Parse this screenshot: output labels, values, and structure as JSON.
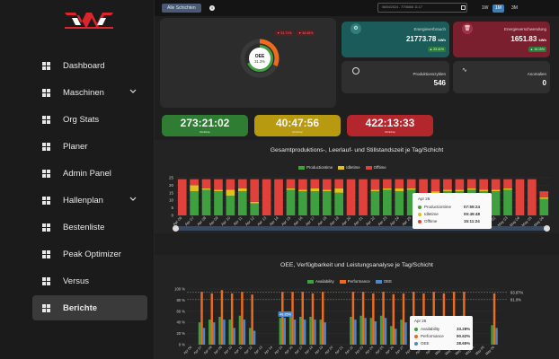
{
  "sidebar": {
    "items": [
      {
        "label": "Dashboard",
        "icon": "dashboard-icon"
      },
      {
        "label": "Maschinen",
        "icon": "machines-icon",
        "expandable": true
      },
      {
        "label": "Org Stats",
        "icon": "rocket-icon"
      },
      {
        "label": "Planer",
        "icon": "planner-icon"
      },
      {
        "label": "Admin Panel",
        "icon": "admin-icon"
      },
      {
        "label": "Hallenplan",
        "icon": "floorplan-icon",
        "expandable": true
      },
      {
        "label": "Bestenliste",
        "icon": "leaderboard-icon"
      },
      {
        "label": "Peak Optimizer",
        "icon": "optimizer-icon"
      },
      {
        "label": "Versus",
        "icon": "versus-icon"
      },
      {
        "label": "Berichte",
        "icon": "reports-icon",
        "active": true
      }
    ]
  },
  "topbar": {
    "filter_label": "Alle Schichten",
    "date_range": "06/04/2024 - 7/7/6666 11:17",
    "ranges": [
      "1W",
      "1M",
      "3M"
    ],
    "active_range": "1M"
  },
  "oee": {
    "label": "OEE",
    "value": "31.3%",
    "badge_left": "▼ 31.71%",
    "badge_right": "▼ 46.45%"
  },
  "tiles": {
    "energy": {
      "label": "Energieverbrauch",
      "value": "21773.78",
      "unit": "kWh",
      "badge": "▲ 33.41%"
    },
    "waste": {
      "label": "Energieverschwendung",
      "value": "1651.83",
      "unit": "kWh",
      "badge": "▲ 16.15%"
    },
    "cycles": {
      "label": "Produktionszyklen",
      "value": "546"
    },
    "anomalies": {
      "label": "Anomalien",
      "value": "0"
    }
  },
  "kpis": [
    {
      "value": "273:21:02",
      "sub": "Workshop",
      "color": "#2e7d32"
    },
    {
      "value": "40:47:56",
      "sub": "Workshop",
      "color": "#b89a10"
    },
    {
      "value": "422:13:33",
      "sub": "Workshop",
      "color": "#b3262b"
    }
  ],
  "chart1_title": "Gesamtproduktions-, Leerlauf- und Stillstandszeit je Tag/Schicht",
  "chart2_title": "OEE, Verfügbarkeit und Leistungsanalyse je Tag/Schicht",
  "tooltip1": {
    "title": "Apr 26",
    "rows": [
      {
        "label": "Productiontime",
        "value": "07:59:24",
        "color": "#3fa03f"
      },
      {
        "label": "Idletime",
        "value": "00:49:48",
        "color": "#e0c020"
      },
      {
        "label": "Offtime",
        "value": "15:11:24",
        "color": "#e0413a"
      }
    ]
  },
  "tooltip2": {
    "title": "Apr 26",
    "rows": [
      {
        "label": "Availability",
        "value": "33.28%",
        "color": "#3fa03f"
      },
      {
        "label": "Performance",
        "value": "90.62%",
        "color": "#ee6a1c"
      },
      {
        "label": "OEE",
        "value": "28.65%",
        "color": "#4a88c8"
      }
    ]
  },
  "chart_data": [
    {
      "type": "bar",
      "title": "Gesamtproduktions-, Leerlauf- und Stillstandszeit je Tag/Schicht",
      "stacked": true,
      "ylim": [
        0,
        25
      ],
      "yticks": [
        0,
        5,
        10,
        15,
        20,
        25
      ],
      "categories": [
        "Apr 06",
        "Apr 07",
        "Apr 08",
        "Apr 09",
        "Apr 10",
        "Apr 11",
        "Apr 12",
        "Apr 13",
        "Apr 14",
        "Apr 15",
        "Apr 16",
        "Apr 17",
        "Apr 18",
        "Apr 19",
        "Apr 20",
        "Apr 21",
        "Apr 22",
        "Apr 23",
        "Apr 24",
        "Apr 25",
        "Apr 26",
        "Apr 27",
        "Apr 28",
        "Apr 29",
        "Apr 30",
        "May 01",
        "May 02",
        "May 03",
        "May 04",
        "May 05",
        "May 06"
      ],
      "series": [
        {
          "name": "Productiontime",
          "color": "#3fa03f",
          "values": [
            0,
            16,
            17,
            16,
            13,
            16,
            8,
            0,
            0,
            17,
            16,
            16,
            16,
            15,
            0,
            0,
            16,
            17,
            16,
            17,
            8,
            14,
            16,
            16,
            17,
            16,
            16,
            17,
            0,
            0,
            11
          ]
        },
        {
          "name": "Idletime",
          "color": "#e0c020",
          "values": [
            0,
            4,
            1,
            1,
            4,
            2,
            1,
            0,
            0,
            1,
            1,
            2,
            1,
            3,
            0,
            0,
            1,
            1,
            2,
            1,
            0.83,
            2,
            1,
            1,
            1,
            1,
            1,
            1,
            0,
            0,
            1
          ]
        },
        {
          "name": "Offtime",
          "color": "#e0413a",
          "values": [
            24,
            4,
            6,
            7,
            7,
            6,
            15,
            24,
            24,
            6,
            7,
            6,
            7,
            6,
            24,
            24,
            7,
            6,
            6,
            6,
            15.2,
            8,
            7,
            7,
            6,
            7,
            7,
            6,
            24,
            24,
            4
          ]
        }
      ],
      "legend": "top-center"
    },
    {
      "type": "bar",
      "title": "OEE, Verfügbarkeit und Leistungsanalyse je Tag/Schicht",
      "ylim": [
        0,
        100
      ],
      "yticks": [
        "0 %",
        "20 %",
        "40 %",
        "60 %",
        "80 %",
        "100 %"
      ],
      "reference_lines": [
        {
          "label": "93.87%",
          "value": 93.87,
          "color": "#ee6a1c"
        },
        {
          "label": "81.0%",
          "value": 81,
          "color": "#3fa03f"
        }
      ],
      "bar_label": "48.35%",
      "categories": [
        "Apr 06",
        "Apr 07",
        "Apr 08",
        "Apr 09",
        "Apr 10",
        "Apr 11",
        "Apr 12",
        "Apr 13",
        "Apr 14",
        "Apr 15",
        "Apr 16",
        "Apr 17",
        "Apr 18",
        "Apr 19",
        "Apr 20",
        "Apr 21",
        "Apr 22",
        "Apr 23",
        "Apr 24",
        "Apr 25",
        "Apr 26",
        "Apr 27",
        "Apr 28",
        "Apr 29",
        "Apr 30",
        "May 01",
        "May 02",
        "May 03",
        "May 04",
        "May 05",
        "May 06"
      ],
      "series": [
        {
          "name": "Availability",
          "color": "#3fa03f",
          "values": [
            0,
            40,
            45,
            50,
            45,
            52,
            30,
            0,
            0,
            48,
            52,
            50,
            50,
            45,
            0,
            0,
            50,
            52,
            48,
            52,
            33.28,
            45,
            50,
            48,
            50,
            50,
            48,
            52,
            0,
            0,
            35
          ]
        },
        {
          "name": "Performance",
          "color": "#ee6a1c",
          "values": [
            0,
            95,
            92,
            98,
            92,
            95,
            90,
            0,
            0,
            95,
            95,
            95,
            92,
            95,
            0,
            0,
            95,
            95,
            92,
            95,
            90.62,
            92,
            95,
            92,
            95,
            92,
            95,
            95,
            0,
            0,
            92
          ]
        },
        {
          "name": "OEE",
          "color": "#4a88c8",
          "values": [
            0,
            30,
            40,
            45,
            30,
            45,
            25,
            0,
            0,
            48.35,
            45,
            45,
            45,
            40,
            0,
            0,
            45,
            48,
            42,
            48,
            28.65,
            40,
            45,
            42,
            45,
            45,
            42,
            45,
            0,
            0,
            30
          ]
        }
      ],
      "legend": "top-center"
    }
  ]
}
